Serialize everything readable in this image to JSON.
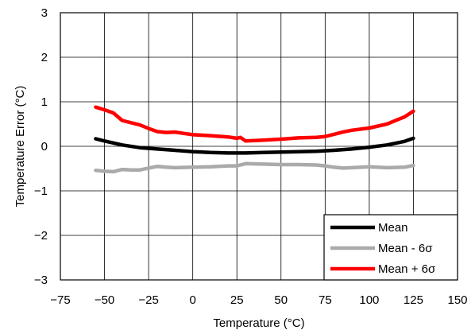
{
  "chart_data": {
    "type": "line",
    "title": "",
    "xlabel": "Temperature (°C)",
    "ylabel": "Temperature Error (°C)",
    "xlim": [
      -75,
      150
    ],
    "ylim": [
      -3,
      3
    ],
    "x_ticks": [
      -75,
      -50,
      -25,
      0,
      25,
      50,
      75,
      100,
      125,
      150
    ],
    "x_tick_labels": [
      "−75",
      "−50",
      "−25",
      "0",
      "25",
      "50",
      "75",
      "100",
      "125",
      "150"
    ],
    "y_ticks": [
      -3,
      -2,
      -1,
      0,
      1,
      2,
      3
    ],
    "y_tick_labels": [
      "−3",
      "−2",
      "−1",
      "0",
      "1",
      "2",
      "3"
    ],
    "grid": true,
    "legend_position": "bottom-right",
    "series": [
      {
        "name": "Mean",
        "color": "#000000",
        "x": [
          -55,
          -50,
          -40,
          -30,
          -20,
          -10,
          0,
          10,
          20,
          25,
          30,
          40,
          50,
          60,
          70,
          80,
          90,
          100,
          110,
          120,
          125
        ],
        "y": [
          0.17,
          0.12,
          0.03,
          -0.03,
          -0.06,
          -0.09,
          -0.12,
          -0.14,
          -0.15,
          -0.15,
          -0.15,
          -0.14,
          -0.13,
          -0.12,
          -0.11,
          -0.09,
          -0.06,
          -0.02,
          0.03,
          0.11,
          0.18
        ]
      },
      {
        "name": "Mean - 6σ",
        "color": "#aaaaaa",
        "x": [
          -55,
          -50,
          -45,
          -40,
          -35,
          -30,
          -25,
          -20,
          -15,
          -10,
          0,
          10,
          20,
          25,
          30,
          40,
          50,
          60,
          70,
          75,
          80,
          85,
          90,
          100,
          110,
          120,
          125
        ],
        "y": [
          -0.54,
          -0.56,
          -0.57,
          -0.52,
          -0.53,
          -0.53,
          -0.49,
          -0.45,
          -0.47,
          -0.48,
          -0.47,
          -0.46,
          -0.44,
          -0.44,
          -0.39,
          -0.4,
          -0.41,
          -0.41,
          -0.42,
          -0.44,
          -0.47,
          -0.49,
          -0.48,
          -0.46,
          -0.48,
          -0.47,
          -0.43
        ]
      },
      {
        "name": "Mean + 6σ",
        "color": "#ff0000",
        "x": [
          -55,
          -50,
          -45,
          -40,
          -35,
          -30,
          -25,
          -20,
          -15,
          -10,
          -5,
          0,
          10,
          20,
          25,
          27,
          30,
          40,
          50,
          60,
          70,
          75,
          80,
          85,
          90,
          100,
          110,
          120,
          125
        ],
        "y": [
          0.88,
          0.82,
          0.75,
          0.58,
          0.53,
          0.48,
          0.4,
          0.33,
          0.31,
          0.32,
          0.29,
          0.26,
          0.24,
          0.21,
          0.18,
          0.2,
          0.12,
          0.14,
          0.16,
          0.19,
          0.2,
          0.22,
          0.27,
          0.32,
          0.36,
          0.41,
          0.5,
          0.66,
          0.79
        ]
      }
    ]
  }
}
